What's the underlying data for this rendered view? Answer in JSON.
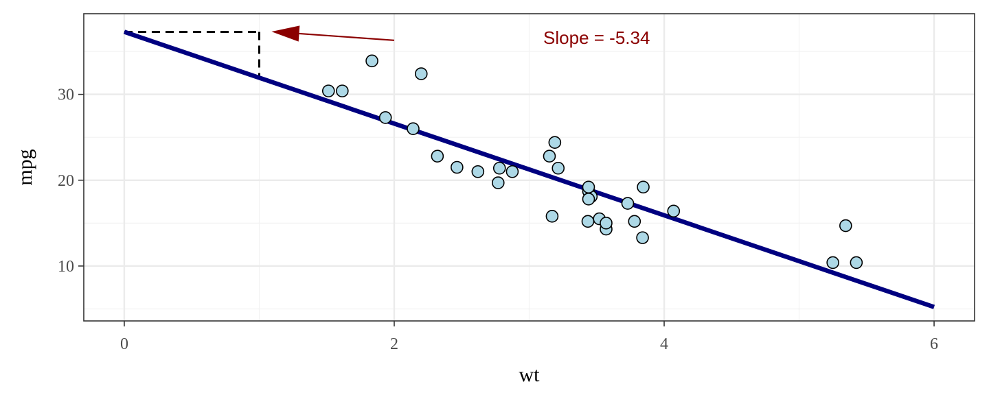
{
  "chart_data": {
    "type": "scatter",
    "xlabel": "wt",
    "ylabel": "mpg",
    "xlim": [
      -0.3,
      6.3
    ],
    "ylim": [
      3.6,
      39.4
    ],
    "x_ticks": [
      0,
      2,
      4,
      6
    ],
    "y_ticks": [
      10,
      20,
      30
    ],
    "x_tick_labels": [
      "0",
      "2",
      "4",
      "6"
    ],
    "y_tick_labels": [
      "10",
      "20",
      "30"
    ],
    "grid": true,
    "points": [
      {
        "x": 2.62,
        "y": 21.0
      },
      {
        "x": 2.875,
        "y": 21.0
      },
      {
        "x": 2.32,
        "y": 22.8
      },
      {
        "x": 3.215,
        "y": 21.4
      },
      {
        "x": 3.44,
        "y": 18.7
      },
      {
        "x": 3.46,
        "y": 18.1
      },
      {
        "x": 3.57,
        "y": 14.3
      },
      {
        "x": 3.19,
        "y": 24.4
      },
      {
        "x": 3.15,
        "y": 22.8
      },
      {
        "x": 3.44,
        "y": 19.2
      },
      {
        "x": 3.44,
        "y": 17.8
      },
      {
        "x": 4.07,
        "y": 16.4
      },
      {
        "x": 3.73,
        "y": 17.3
      },
      {
        "x": 3.78,
        "y": 15.2
      },
      {
        "x": 5.25,
        "y": 10.4
      },
      {
        "x": 5.424,
        "y": 10.4
      },
      {
        "x": 5.345,
        "y": 14.7
      },
      {
        "x": 2.2,
        "y": 32.4
      },
      {
        "x": 1.615,
        "y": 30.4
      },
      {
        "x": 1.835,
        "y": 33.9
      },
      {
        "x": 2.465,
        "y": 21.5
      },
      {
        "x": 3.52,
        "y": 15.5
      },
      {
        "x": 3.435,
        "y": 15.2
      },
      {
        "x": 3.84,
        "y": 13.3
      },
      {
        "x": 3.845,
        "y": 19.2
      },
      {
        "x": 1.935,
        "y": 27.3
      },
      {
        "x": 2.14,
        "y": 26.0
      },
      {
        "x": 1.513,
        "y": 30.4
      },
      {
        "x": 3.17,
        "y": 15.8
      },
      {
        "x": 2.77,
        "y": 19.7
      },
      {
        "x": 3.57,
        "y": 15.0
      },
      {
        "x": 2.78,
        "y": 21.4
      }
    ],
    "regression_line": {
      "intercept": 37.285,
      "slope": -5.344,
      "x_start": 0,
      "x_end": 6
    },
    "slope_guide": {
      "x1": 0,
      "x2": 1,
      "y_top": 37.285,
      "y_bottom": 31.941
    },
    "annotation": {
      "text": "Slope = -5.34",
      "x": 3.5,
      "y": 36.6,
      "arrow_from": [
        2.0,
        36.3
      ],
      "arrow_to": [
        1.1,
        37.3
      ]
    },
    "colors": {
      "point_fill": "#add8e6",
      "point_stroke": "#000000",
      "line": "#000080",
      "annotation": "#8b0000",
      "guide": "#000000",
      "grid_major": "#ebebeb",
      "grid_minor": "#f2f2f2",
      "panel_border": "#333333"
    }
  }
}
